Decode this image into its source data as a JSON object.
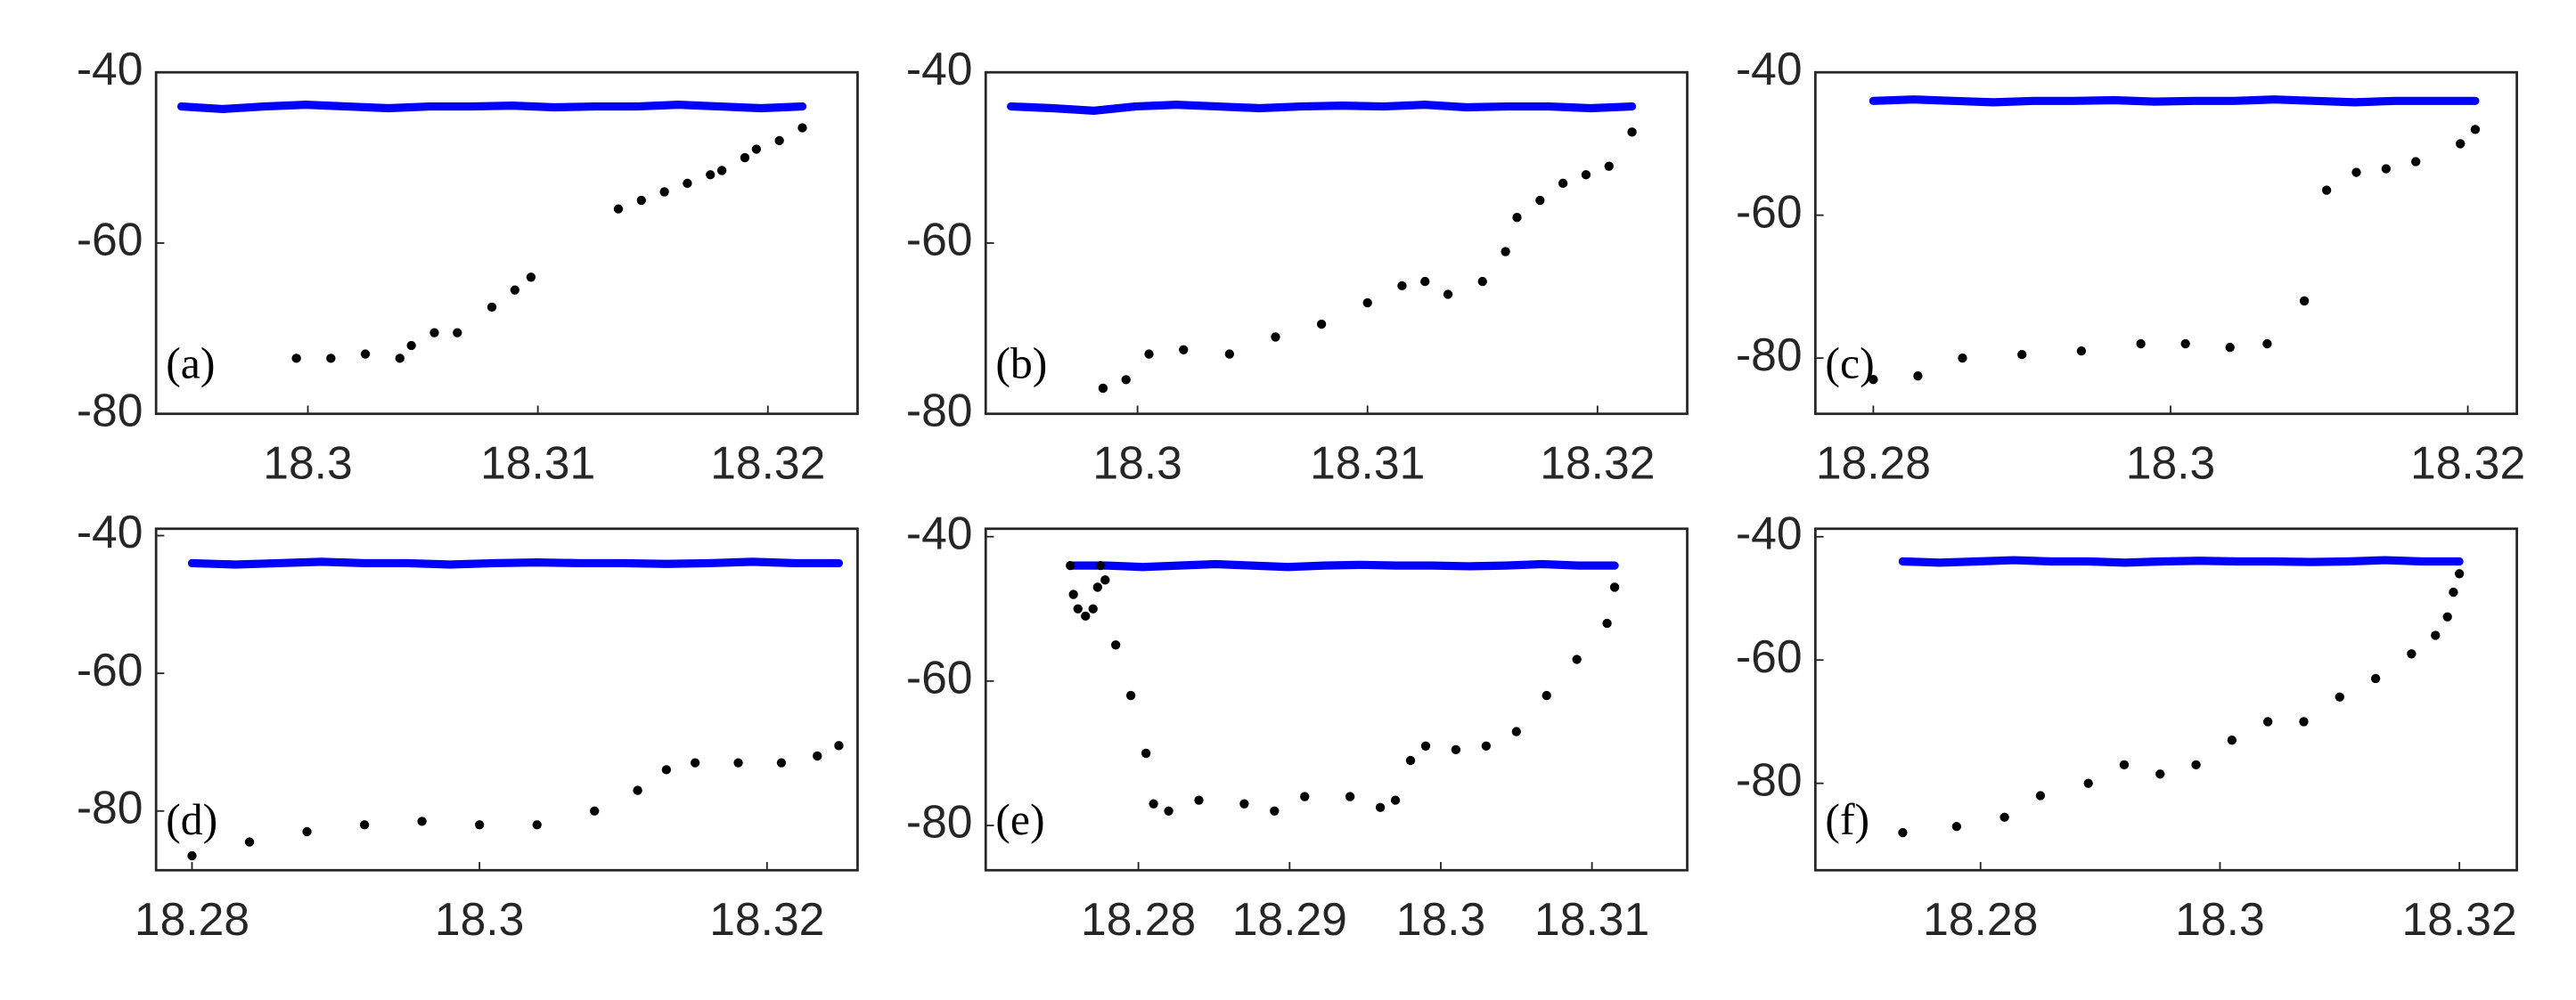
{
  "chart_data": [
    {
      "type": "scatter",
      "annotation": "(a)",
      "xlim": [
        18.2934,
        18.3239
      ],
      "ylim": [
        -80,
        -40
      ],
      "xticks": [
        18.3,
        18.31,
        18.32
      ],
      "yticks": [
        -40,
        -60,
        -80
      ],
      "series": [
        {
          "color": "#0000ff",
          "marker": "band",
          "x": [
            18.2945,
            18.2963,
            18.2981,
            18.2999,
            18.3017,
            18.3035,
            18.3053,
            18.3071,
            18.3089,
            18.3107,
            18.3125,
            18.3143,
            18.3161,
            18.3179,
            18.3197,
            18.3215
          ],
          "values": [
            -44,
            -44.3,
            -44,
            -43.8,
            -44,
            -44.2,
            -44,
            -44,
            -43.9,
            -44.1,
            -44,
            -44,
            -43.8,
            -44,
            -44.2,
            -44
          ]
        },
        {
          "color": "#000000",
          "marker": "dot",
          "x": [
            18.2995,
            18.301,
            18.3025,
            18.304,
            18.3045,
            18.3055,
            18.3065,
            18.308,
            18.309,
            18.3097,
            18.3135,
            18.3145,
            18.3155,
            18.3165,
            18.3175,
            18.318,
            18.319,
            18.3195,
            18.3205,
            18.3215
          ],
          "values": [
            -73.5,
            -73.5,
            -73,
            -73.5,
            -72,
            -70.5,
            -70.5,
            -67.5,
            -65.5,
            -64,
            -56,
            -55,
            -54,
            -53,
            -52,
            -51.5,
            -50,
            -49,
            -48,
            -46.5
          ]
        }
      ]
    },
    {
      "type": "scatter",
      "annotation": "(b)",
      "xlim": [
        18.2934,
        18.3239
      ],
      "ylim": [
        -80,
        -40
      ],
      "xticks": [
        18.3,
        18.31,
        18.32
      ],
      "yticks": [
        -40,
        -60,
        -80
      ],
      "series": [
        {
          "color": "#0000ff",
          "marker": "band",
          "x": [
            18.2945,
            18.2963,
            18.2981,
            18.2999,
            18.3017,
            18.3035,
            18.3053,
            18.3071,
            18.3089,
            18.3107,
            18.3125,
            18.3143,
            18.3161,
            18.3179,
            18.3197,
            18.3215
          ],
          "values": [
            -44,
            -44.2,
            -44.5,
            -44,
            -43.8,
            -44,
            -44.2,
            -44,
            -43.9,
            -44,
            -43.8,
            -44.1,
            -44,
            -44,
            -44.2,
            -44
          ]
        },
        {
          "color": "#000000",
          "marker": "dot",
          "x": [
            18.2985,
            18.2995,
            18.3005,
            18.302,
            18.304,
            18.306,
            18.308,
            18.31,
            18.3115,
            18.3125,
            18.3135,
            18.315,
            18.316,
            18.3165,
            18.3175,
            18.3185,
            18.3195,
            18.3205,
            18.3215
          ],
          "values": [
            -77,
            -76,
            -73,
            -72.5,
            -73,
            -71,
            -69.5,
            -67,
            -65,
            -64.5,
            -66,
            -64.5,
            -61,
            -57,
            -55,
            -53,
            -52,
            -51,
            -47
          ]
        }
      ]
    },
    {
      "type": "scatter",
      "annotation": "(c)",
      "xlim": [
        18.2761,
        18.3233
      ],
      "ylim": [
        -87.8,
        -40
      ],
      "xticks": [
        18.28,
        18.3,
        18.32
      ],
      "yticks": [
        -40,
        -60,
        -80
      ],
      "series": [
        {
          "color": "#0000ff",
          "marker": "band",
          "x": [
            18.28,
            18.2827,
            18.2854,
            18.2881,
            18.2908,
            18.2935,
            18.2962,
            18.2989,
            18.3016,
            18.3043,
            18.307,
            18.3097,
            18.3124,
            18.3151,
            18.3178,
            18.3205
          ],
          "values": [
            -44,
            -43.8,
            -44,
            -44.2,
            -44,
            -44,
            -43.9,
            -44.1,
            -44,
            -44,
            -43.8,
            -44,
            -44.2,
            -44,
            -44,
            -44
          ]
        },
        {
          "color": "#000000",
          "marker": "dot",
          "x": [
            18.28,
            18.283,
            18.286,
            18.29,
            18.294,
            18.298,
            18.301,
            18.304,
            18.3065,
            18.309,
            18.3105,
            18.3125,
            18.3145,
            18.3165,
            18.3195,
            18.3205
          ],
          "values": [
            -83,
            -82.5,
            -80,
            -79.5,
            -79,
            -78,
            -78,
            -78.5,
            -78,
            -72,
            -56.5,
            -54,
            -53.5,
            -52.5,
            -50,
            -48
          ]
        }
      ]
    },
    {
      "type": "scatter",
      "annotation": "(d)",
      "xlim": [
        18.2775,
        18.3263
      ],
      "ylim": [
        -88.6,
        -39
      ],
      "xticks": [
        18.28,
        18.3,
        18.32
      ],
      "yticks": [
        -40,
        -60,
        -80
      ],
      "series": [
        {
          "color": "#0000ff",
          "marker": "band",
          "x": [
            18.28,
            18.283,
            18.286,
            18.289,
            18.292,
            18.295,
            18.298,
            18.301,
            18.304,
            18.307,
            18.31,
            18.313,
            18.316,
            18.319,
            18.322,
            18.325
          ],
          "values": [
            -44,
            -44.2,
            -44,
            -43.8,
            -44,
            -44,
            -44.2,
            -44,
            -43.9,
            -44,
            -44,
            -44.1,
            -44,
            -43.8,
            -44,
            -44
          ]
        },
        {
          "color": "#000000",
          "marker": "dot",
          "x": [
            18.28,
            18.284,
            18.288,
            18.292,
            18.296,
            18.3,
            18.304,
            18.308,
            18.311,
            18.313,
            18.315,
            18.318,
            18.321,
            18.3235,
            18.325
          ],
          "values": [
            -86.5,
            -84.5,
            -83,
            -82,
            -81.5,
            -82,
            -82,
            -80,
            -77,
            -74,
            -73,
            -73,
            -73,
            -72,
            -70.5
          ]
        }
      ]
    },
    {
      "type": "scatter",
      "annotation": "(e)",
      "xlim": [
        18.2699,
        18.3163
      ],
      "ylim": [
        -86.2,
        -38.9
      ],
      "xticks": [
        18.28,
        18.29,
        18.3,
        18.31
      ],
      "yticks": [
        -40,
        -60,
        -80
      ],
      "series": [
        {
          "color": "#0000ff",
          "marker": "band",
          "x": [
            18.2755,
            18.2779,
            18.2803,
            18.2827,
            18.2851,
            18.2875,
            18.2899,
            18.2923,
            18.2947,
            18.2971,
            18.2995,
            18.3019,
            18.3043,
            18.3067,
            18.3091,
            18.3115
          ],
          "values": [
            -44,
            -44,
            -44.2,
            -44,
            -43.8,
            -44,
            -44.2,
            -44,
            -43.9,
            -44,
            -44,
            -44.1,
            -44,
            -43.8,
            -44,
            -44
          ]
        },
        {
          "color": "#000000",
          "marker": "dot",
          "x": [
            18.2755,
            18.2757,
            18.276,
            18.2765,
            18.277,
            18.2773,
            18.2775,
            18.2778,
            18.2785,
            18.2795,
            18.2805,
            18.281,
            18.282,
            18.284,
            18.287,
            18.289,
            18.291,
            18.294,
            18.296,
            18.297,
            18.298,
            18.299,
            18.301,
            18.303,
            18.305,
            18.307,
            18.309,
            18.311,
            18.3115
          ],
          "values": [
            -44,
            -48,
            -50,
            -51,
            -50,
            -47,
            -44,
            -46,
            -55,
            -62,
            -70,
            -77,
            -78,
            -76.5,
            -77,
            -78,
            -76,
            -76,
            -77.5,
            -76.5,
            -71,
            -69,
            -69.5,
            -69,
            -67,
            -62,
            -57,
            -52,
            -47
          ]
        }
      ]
    },
    {
      "type": "scatter",
      "annotation": "(f)",
      "xlim": [
        18.2662,
        18.3248
      ],
      "ylim": [
        -94.1,
        -38.7
      ],
      "xticks": [
        18.28,
        18.3,
        18.32
      ],
      "yticks": [
        -40,
        -60,
        -80
      ],
      "series": [
        {
          "color": "#0000ff",
          "marker": "band",
          "x": [
            18.2735,
            18.2766,
            18.2797,
            18.2828,
            18.2859,
            18.289,
            18.2921,
            18.2952,
            18.2983,
            18.3014,
            18.3045,
            18.3076,
            18.3107,
            18.3138,
            18.3169,
            18.32
          ],
          "values": [
            -44,
            -44.2,
            -44,
            -43.8,
            -44,
            -44,
            -44.2,
            -44,
            -43.9,
            -44,
            -44,
            -44.1,
            -44,
            -43.8,
            -44,
            -44
          ]
        },
        {
          "color": "#000000",
          "marker": "dot",
          "x": [
            18.2735,
            18.278,
            18.282,
            18.285,
            18.289,
            18.292,
            18.295,
            18.298,
            18.301,
            18.304,
            18.307,
            18.31,
            18.313,
            18.316,
            18.318,
            18.319,
            18.3195,
            18.32
          ],
          "values": [
            -88,
            -87,
            -85.5,
            -82,
            -80,
            -77,
            -78.5,
            -77,
            -73,
            -70,
            -70,
            -66,
            -63,
            -59,
            -56,
            -53,
            -49,
            -46
          ]
        }
      ]
    }
  ]
}
